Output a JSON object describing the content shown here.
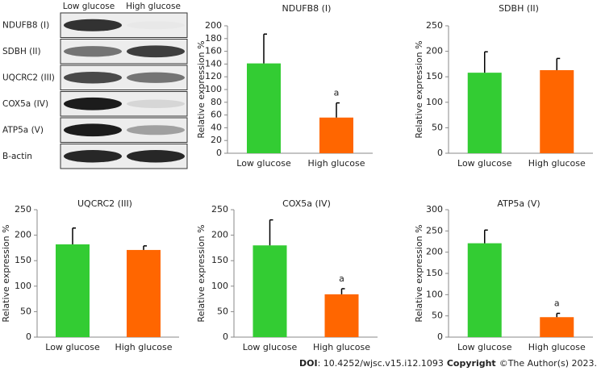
{
  "blot": {
    "columns": [
      "Low glucose",
      "High glucose"
    ],
    "rows": [
      "NDUFB8 (I)",
      "SDBH (II)",
      "UQCRC2 (III)",
      "COX5a (IV)",
      "ATP5a (V)",
      "B-actin"
    ]
  },
  "chart_data": [
    {
      "type": "bar",
      "title": "NDUFB8 (I)",
      "y_label": "Relative expression %",
      "categories": [
        "Low glucose",
        "High glucose"
      ],
      "values": [
        141,
        56
      ],
      "errors": [
        46,
        23
      ],
      "colors": [
        "#33cc33",
        "#ff6600"
      ],
      "annotations": [
        null,
        "a"
      ],
      "ylim": [
        0,
        200
      ],
      "yticks": [
        0,
        20,
        40,
        60,
        80,
        100,
        120,
        140,
        160,
        180,
        200
      ]
    },
    {
      "type": "bar",
      "title": "SDBH (II)",
      "y_label": "Relative expression %",
      "categories": [
        "Low glucose",
        "High glucose"
      ],
      "values": [
        158,
        163
      ],
      "errors": [
        41,
        23
      ],
      "colors": [
        "#33cc33",
        "#ff6600"
      ],
      "annotations": [
        null,
        null
      ],
      "ylim": [
        0,
        250
      ],
      "yticks": [
        0,
        50,
        100,
        150,
        200,
        250
      ]
    },
    {
      "type": "bar",
      "title": "UQCRC2 (III)",
      "y_label": "Relative expression %",
      "categories": [
        "Low glucose",
        "High glucose"
      ],
      "values": [
        182,
        171
      ],
      "errors": [
        32,
        8
      ],
      "colors": [
        "#33cc33",
        "#ff6600"
      ],
      "annotations": [
        null,
        null
      ],
      "ylim": [
        0,
        250
      ],
      "yticks": [
        0,
        50,
        100,
        150,
        200,
        250
      ]
    },
    {
      "type": "bar",
      "title": "COX5a (IV)",
      "y_label": "Relative expression %",
      "categories": [
        "Low glucose",
        "High glucose"
      ],
      "values": [
        180,
        84
      ],
      "errors": [
        50,
        11
      ],
      "colors": [
        "#33cc33",
        "#ff6600"
      ],
      "annotations": [
        null,
        "a"
      ],
      "ylim": [
        0,
        250
      ],
      "yticks": [
        0,
        50,
        100,
        150,
        200,
        250
      ]
    },
    {
      "type": "bar",
      "title": "ATP5a (V)",
      "y_label": "Relative expression %",
      "categories": [
        "Low glucose",
        "High glucose"
      ],
      "values": [
        221,
        47
      ],
      "errors": [
        31,
        9
      ],
      "colors": [
        "#33cc33",
        "#ff6600"
      ],
      "annotations": [
        null,
        "a"
      ],
      "ylim": [
        0,
        300
      ],
      "yticks": [
        0,
        50,
        100,
        150,
        200,
        250,
        300
      ]
    }
  ],
  "footer": {
    "doi_label": "DOI",
    "doi": ": 10.4252/wjsc.v15.i12.1093",
    "copyright_label": "Copyright",
    "copyright": "©The Author(s) 2023."
  }
}
